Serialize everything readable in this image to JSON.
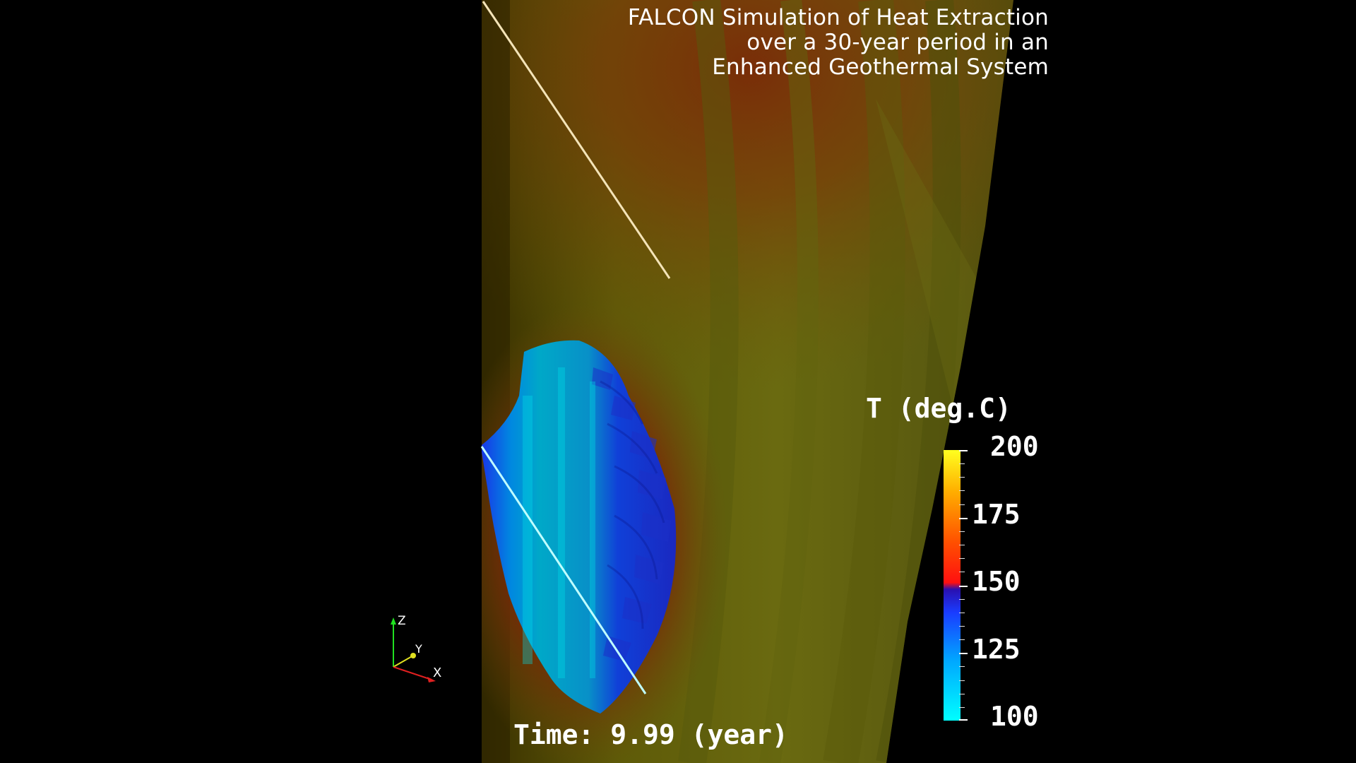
{
  "title": {
    "line1": "FALCON Simulation of Heat Extraction",
    "line2": "over a 30-year period in an",
    "line3": "Enhanced Geothermal System"
  },
  "time_readout": "Time: 9.99 (year)",
  "legend": {
    "title": "T (deg.C)",
    "labels": [
      "200",
      "175",
      "150",
      "125",
      "100"
    ],
    "min": 100,
    "max": 200
  },
  "axes": {
    "z": "Z",
    "y": "Y",
    "x": "X"
  },
  "colors": {
    "background": "#000000",
    "warm_rock": "#6a6a10",
    "hot_zone": "#7a2a08",
    "cool_zone_edge": "#1030e0",
    "cool_zone_core": "#00c8d8",
    "injection_well": "#f0e0b0",
    "production_well": "#a0ffff"
  }
}
